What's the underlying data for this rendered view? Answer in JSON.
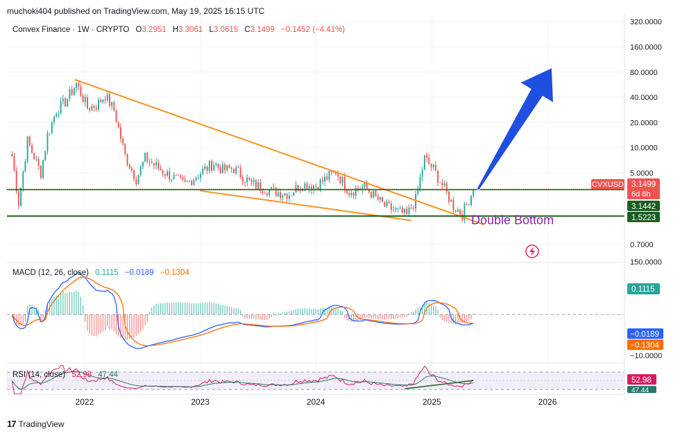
{
  "header": {
    "published": "muchoki404 published on TradingView.com, May 19, 2025 16:15 UTC"
  },
  "footer": {
    "brand": "TradingView",
    "logo_glyph": "17"
  },
  "legend": {
    "symbol": "Convex Finance · 1W · CRYPTO",
    "open_label": "O",
    "open": "3.2951",
    "high_label": "H",
    "high": "3.3061",
    "low_label": "L",
    "low": "3.0615",
    "close_label": "C",
    "close": "3.1499",
    "change": "−0.1452 (−4.41%)"
  },
  "badges": {
    "ticker": "CVXUSD",
    "price": "3.1499",
    "countdown": "6d 8h",
    "level_1": "3.1442",
    "level_2": "1.5223",
    "macd_hist": "0.1115",
    "macd_line": "−0.0189",
    "macd_signal": "−0.1304",
    "rsi": "52.98",
    "rsi_ma": "47.44"
  },
  "annotation": {
    "text": "Double Bottom"
  },
  "macd_legend": {
    "label": "MACD (12, 26, close)",
    "hist": "0.1115",
    "macd": "−0.0189",
    "signal": "−0.1304"
  },
  "rsi_legend": {
    "label": "RSI (14, close)",
    "rsi": "52.98",
    "ma": "47.44"
  },
  "colors": {
    "up": "#26a69a",
    "down": "#ef5350",
    "trend": "#f7931e",
    "arrow": "#1f4fe0",
    "macd": "#2962ff",
    "signal": "#ff6d00",
    "rsi": "#d81b60",
    "rsi_ma": "#26786e",
    "support": "#1b5e20",
    "annotation": "#8e24aa"
  },
  "chart_data": [
    {
      "type": "candlestick",
      "title": "Convex Finance · 1W · CRYPTO",
      "scale": "log",
      "ylim": [
        0.45,
        360
      ],
      "xlim": [
        "2021-05-01",
        "2026-09-01"
      ],
      "y_ticks": [
        {
          "value": 320,
          "label": "320.0000"
        },
        {
          "value": 160,
          "label": "160.0000"
        },
        {
          "value": 80,
          "label": "80.0000"
        },
        {
          "value": 40,
          "label": "40.0000"
        },
        {
          "value": 20,
          "label": "20.0000"
        },
        {
          "value": 10,
          "label": "10.0000"
        },
        {
          "value": 5,
          "label": "5.0000"
        },
        {
          "value": 0.7,
          "label": "0.7000"
        }
      ],
      "x_ticks": [
        {
          "date": "2022-01-01",
          "label": "2022"
        },
        {
          "date": "2023-01-01",
          "label": "2023"
        },
        {
          "date": "2024-01-01",
          "label": "2024"
        },
        {
          "date": "2025-01-01",
          "label": "2025"
        },
        {
          "date": "2026-01-01",
          "label": "2026"
        }
      ],
      "price_path": [
        [
          "2021-05-17",
          8
        ],
        [
          "2021-06-07",
          2.2
        ],
        [
          "2021-07-05",
          12
        ],
        [
          "2021-08-16",
          5
        ],
        [
          "2021-09-06",
          14
        ],
        [
          "2021-10-04",
          28
        ],
        [
          "2021-11-01",
          35
        ],
        [
          "2021-12-06",
          58
        ],
        [
          "2022-01-10",
          30
        ],
        [
          "2022-02-07",
          32
        ],
        [
          "2022-03-07",
          42
        ],
        [
          "2022-04-04",
          28
        ],
        [
          "2022-05-09",
          8
        ],
        [
          "2022-06-13",
          4.2
        ],
        [
          "2022-07-11",
          7.5
        ],
        [
          "2022-09-05",
          5.2
        ],
        [
          "2022-11-14",
          3.6
        ],
        [
          "2023-01-16",
          5.5
        ],
        [
          "2023-02-13",
          6.5
        ],
        [
          "2023-03-13",
          5.4
        ],
        [
          "2023-04-17",
          5.6
        ],
        [
          "2023-06-12",
          3.7
        ],
        [
          "2023-08-14",
          3.0
        ],
        [
          "2023-10-09",
          2.8
        ],
        [
          "2023-11-13",
          3.6
        ],
        [
          "2024-01-01",
          3.5
        ],
        [
          "2024-03-04",
          5.2
        ],
        [
          "2024-04-15",
          3.0
        ],
        [
          "2024-06-03",
          3.4
        ],
        [
          "2024-08-05",
          2.0
        ],
        [
          "2024-10-14",
          1.55
        ],
        [
          "2024-11-11",
          2.4
        ],
        [
          "2024-12-09",
          7.5
        ],
        [
          "2025-01-06",
          5.5
        ],
        [
          "2025-02-10",
          3.2
        ],
        [
          "2025-03-10",
          2.0
        ],
        [
          "2025-04-07",
          1.6
        ],
        [
          "2025-05-12",
          3.15
        ]
      ],
      "overlays": {
        "upper_trendline": [
          [
            "2021-12-01",
            65
          ],
          [
            "2025-06-15",
            1.2
          ]
        ],
        "lower_trendline": [
          [
            "2023-01-01",
            3.05
          ],
          [
            "2024-10-28",
            1.35
          ]
        ],
        "support_line": 1.5223,
        "current_price_line": 3.1442,
        "projection_arrow": [
          [
            "2025-05-26",
            3.15
          ],
          [
            "2026-01-15",
            90
          ]
        ],
        "annotation": "Double Bottom"
      }
    },
    {
      "type": "bar+line",
      "title": "MACD (12, 26, close)",
      "ylim": [
        -12,
        150
      ],
      "y_ticks": [
        {
          "value": 150,
          "label": "150.0000"
        },
        {
          "value": -10,
          "label": "−10.0000"
        }
      ],
      "series": [
        {
          "name": "Histogram",
          "last": 0.1115
        },
        {
          "name": "MACD",
          "last": -0.0189
        },
        {
          "name": "Signal",
          "last": -0.1304
        }
      ]
    },
    {
      "type": "line",
      "title": "RSI (14, close)",
      "ylim": [
        0,
        100
      ],
      "series": [
        {
          "name": "RSI",
          "last": 52.98
        },
        {
          "name": "RSI MA",
          "last": 47.44
        }
      ]
    }
  ]
}
